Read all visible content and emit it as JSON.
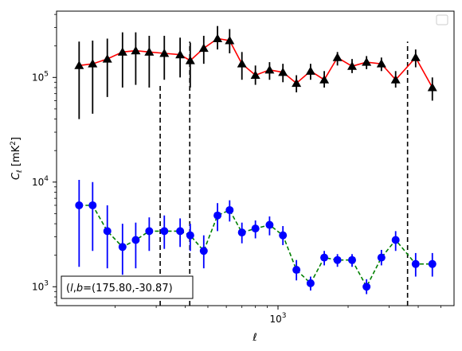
{
  "chart_data": {
    "type": "line",
    "xlabel": "ℓ",
    "ylabel": "C_ℓ [mK²]",
    "xscale": "log",
    "yscale": "log",
    "xlim": [
      112,
      5700
    ],
    "ylim": [
      660,
      430000
    ],
    "x_ticks": [
      {
        "value": 1000,
        "base": "10",
        "exp": "3"
      }
    ],
    "y_ticks": [
      {
        "value": 1000,
        "base": "10",
        "exp": "3"
      },
      {
        "value": 10000,
        "base": "10",
        "exp": "4"
      },
      {
        "value": 100000,
        "base": "10",
        "exp": "5"
      }
    ],
    "grid": false,
    "legend": {
      "placement": "top-right",
      "entries": []
    },
    "annotation": {
      "text": "(l,b)=(175.80,-30.87)",
      "l_label": "l",
      "b_label": "b",
      "value": "=(175.80,-30.87)",
      "placement": "bottom-left"
    },
    "vlines": [
      {
        "x": 312,
        "ymin": 660,
        "ymax": 85000
      },
      {
        "x": 418,
        "ymin": 660,
        "ymax": 220000
      },
      {
        "x": 3600,
        "ymin": 660,
        "ymax": 220000
      }
    ],
    "series": [
      {
        "color": "#ff0000",
        "marker_color": "#000000",
        "marker": "triangle",
        "linestyle": "solid",
        "points": [
          {
            "x": 140,
            "y": 130000,
            "ylo": 40000,
            "yhi": 220000
          },
          {
            "x": 160,
            "y": 135000,
            "ylo": 45000,
            "yhi": 225000
          },
          {
            "x": 185,
            "y": 150000,
            "ylo": 65000,
            "yhi": 235000
          },
          {
            "x": 215,
            "y": 175000,
            "ylo": 80000,
            "yhi": 270000
          },
          {
            "x": 245,
            "y": 180000,
            "ylo": 85000,
            "yhi": 270000
          },
          {
            "x": 280,
            "y": 175000,
            "ylo": 80000,
            "yhi": 250000
          },
          {
            "x": 325,
            "y": 170000,
            "ylo": 95000,
            "yhi": 250000
          },
          {
            "x": 380,
            "y": 165000,
            "ylo": 100000,
            "yhi": 240000
          },
          {
            "x": 420,
            "y": 145000,
            "ylo": 80000,
            "yhi": 215000
          },
          {
            "x": 480,
            "y": 190000,
            "ylo": 135000,
            "yhi": 250000
          },
          {
            "x": 550,
            "y": 235000,
            "ylo": 185000,
            "yhi": 310000
          },
          {
            "x": 620,
            "y": 225000,
            "ylo": 170000,
            "yhi": 290000
          },
          {
            "x": 700,
            "y": 135000,
            "ylo": 95000,
            "yhi": 175000
          },
          {
            "x": 800,
            "y": 105000,
            "ylo": 85000,
            "yhi": 130000
          },
          {
            "x": 920,
            "y": 118000,
            "ylo": 95000,
            "yhi": 140000
          },
          {
            "x": 1050,
            "y": 112000,
            "ylo": 90000,
            "yhi": 135000
          },
          {
            "x": 1200,
            "y": 88000,
            "ylo": 72000,
            "yhi": 105000
          },
          {
            "x": 1380,
            "y": 115000,
            "ylo": 95000,
            "yhi": 135000
          },
          {
            "x": 1580,
            "y": 95000,
            "ylo": 80000,
            "yhi": 115000
          },
          {
            "x": 1800,
            "y": 155000,
            "ylo": 130000,
            "yhi": 175000
          },
          {
            "x": 2080,
            "y": 128000,
            "ylo": 110000,
            "yhi": 150000
          },
          {
            "x": 2400,
            "y": 140000,
            "ylo": 120000,
            "yhi": 160000
          },
          {
            "x": 2780,
            "y": 135000,
            "ylo": 115000,
            "yhi": 155000
          },
          {
            "x": 3200,
            "y": 95000,
            "ylo": 80000,
            "yhi": 115000
          },
          {
            "x": 3900,
            "y": 155000,
            "ylo": 125000,
            "yhi": 185000
          },
          {
            "x": 4600,
            "y": 80000,
            "ylo": 60000,
            "yhi": 100000
          }
        ]
      },
      {
        "color": "#008000",
        "marker_color": "#0000ff",
        "marker": "circle",
        "linestyle": "dashed",
        "points": [
          {
            "x": 140,
            "y": 6000,
            "ylo": 1550,
            "yhi": 10500
          },
          {
            "x": 160,
            "y": 6000,
            "ylo": 2200,
            "yhi": 10000
          },
          {
            "x": 185,
            "y": 3400,
            "ylo": 1500,
            "yhi": 6000
          },
          {
            "x": 215,
            "y": 2400,
            "ylo": 1300,
            "yhi": 4000
          },
          {
            "x": 245,
            "y": 2800,
            "ylo": 1500,
            "yhi": 4100
          },
          {
            "x": 280,
            "y": 3400,
            "ylo": 2200,
            "yhi": 4600
          },
          {
            "x": 325,
            "y": 3400,
            "ylo": 2300,
            "yhi": 4800
          },
          {
            "x": 380,
            "y": 3400,
            "ylo": 2400,
            "yhi": 4500
          },
          {
            "x": 420,
            "y": 3100,
            "ylo": 2200,
            "yhi": 4000
          },
          {
            "x": 480,
            "y": 2200,
            "ylo": 1500,
            "yhi": 3100
          },
          {
            "x": 550,
            "y": 4800,
            "ylo": 3400,
            "yhi": 6300
          },
          {
            "x": 620,
            "y": 5400,
            "ylo": 4200,
            "yhi": 6700
          },
          {
            "x": 700,
            "y": 3300,
            "ylo": 2600,
            "yhi": 4100
          },
          {
            "x": 800,
            "y": 3600,
            "ylo": 2900,
            "yhi": 4300
          },
          {
            "x": 920,
            "y": 3900,
            "ylo": 3100,
            "yhi": 4700
          },
          {
            "x": 1050,
            "y": 3100,
            "ylo": 2500,
            "yhi": 3800
          },
          {
            "x": 1200,
            "y": 1450,
            "ylo": 1150,
            "yhi": 1800
          },
          {
            "x": 1380,
            "y": 1080,
            "ylo": 920,
            "yhi": 1250
          },
          {
            "x": 1580,
            "y": 1900,
            "ylo": 1600,
            "yhi": 2200
          },
          {
            "x": 1800,
            "y": 1800,
            "ylo": 1550,
            "yhi": 2050
          },
          {
            "x": 2080,
            "y": 1800,
            "ylo": 1550,
            "yhi": 2050
          },
          {
            "x": 2400,
            "y": 1000,
            "ylo": 850,
            "yhi": 1180
          },
          {
            "x": 2780,
            "y": 1900,
            "ylo": 1600,
            "yhi": 2250
          },
          {
            "x": 3200,
            "y": 2800,
            "ylo": 2200,
            "yhi": 3400
          },
          {
            "x": 3900,
            "y": 1650,
            "ylo": 1250,
            "yhi": 2100
          },
          {
            "x": 4600,
            "y": 1650,
            "ylo": 1250,
            "yhi": 2100
          }
        ]
      }
    ]
  }
}
